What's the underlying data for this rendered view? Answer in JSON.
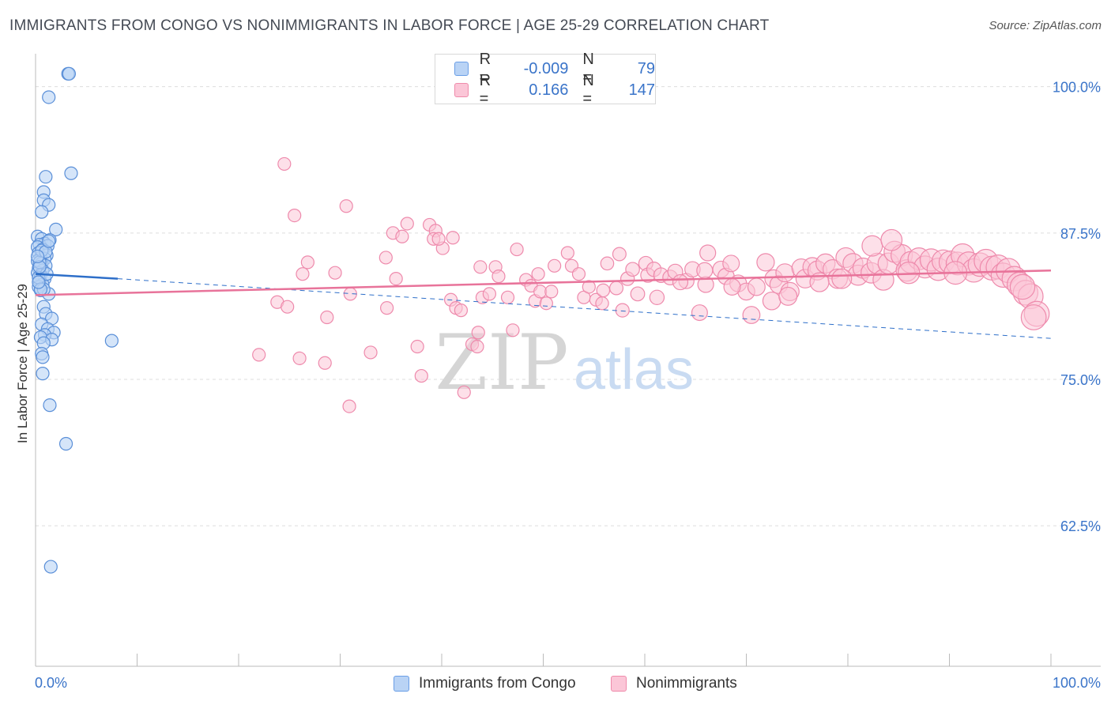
{
  "title": "IMMIGRANTS FROM CONGO VS NONIMMIGRANTS IN LABOR FORCE | AGE 25-29 CORRELATION CHART",
  "source": "Source: ZipAtlas.com",
  "watermark": {
    "zip": "ZIP",
    "atlas": "atlas"
  },
  "legend_top": {
    "r_label": "R =",
    "n_label": "N =",
    "rows": [
      {
        "r": "-0.009",
        "n": "79"
      },
      {
        "r": "0.166",
        "n": "147"
      }
    ]
  },
  "legend_bottom": [
    {
      "label": "Immigrants from Congo"
    },
    {
      "label": "Nonimmigrants"
    }
  ],
  "colors": {
    "blue_fill": "#b9d3f5",
    "blue_stroke": "#5a8fd8",
    "blue_line": "#2e6fc9",
    "pink_fill": "#fbc6d7",
    "pink_stroke": "#ee8aac",
    "pink_line": "#e8739a",
    "axis_text": "#3a74c9",
    "grid": "#dddddd"
  },
  "chart_data": {
    "type": "scatter",
    "title": "IMMIGRANTS FROM CONGO VS NONIMMIGRANTS IN LABOR FORCE | AGE 25-29 CORRELATION CHART",
    "xlabel": "",
    "ylabel": "In Labor Force | Age 25-29",
    "xlim": [
      0,
      100
    ],
    "ylim": [
      50.5,
      102
    ],
    "x_tick_labels": [
      "0.0%",
      "100.0%"
    ],
    "y_ticks": [
      62.5,
      75.0,
      87.5,
      100.0
    ],
    "y_tick_labels": [
      "62.5%",
      "75.0%",
      "87.5%",
      "100.0%"
    ],
    "grid": true,
    "series": [
      {
        "name": "Immigrants from Congo",
        "points": [
          [
            3.2,
            101.1
          ],
          [
            3.3,
            101.1
          ],
          [
            1.3,
            99.1
          ],
          [
            3.5,
            92.6
          ],
          [
            1.0,
            92.3
          ],
          [
            0.8,
            91.0
          ],
          [
            0.8,
            90.3
          ],
          [
            1.3,
            89.9
          ],
          [
            0.6,
            89.3
          ],
          [
            2.0,
            87.8
          ],
          [
            0.2,
            87.2
          ],
          [
            0.6,
            87.0
          ],
          [
            1.4,
            86.9
          ],
          [
            0.9,
            86.6
          ],
          [
            0.4,
            86.5
          ],
          [
            1.2,
            86.4
          ],
          [
            0.2,
            86.3
          ],
          [
            0.7,
            86.1
          ],
          [
            0.3,
            85.8
          ],
          [
            1.1,
            85.6
          ],
          [
            0.5,
            85.4
          ],
          [
            0.9,
            85.3
          ],
          [
            0.2,
            85.1
          ],
          [
            0.6,
            84.9
          ],
          [
            1.0,
            84.7
          ],
          [
            0.3,
            84.5
          ],
          [
            0.7,
            84.3
          ],
          [
            0.2,
            84.1
          ],
          [
            0.5,
            83.9
          ],
          [
            0.9,
            83.6
          ],
          [
            0.4,
            83.4
          ],
          [
            0.7,
            83.1
          ],
          [
            0.3,
            82.9
          ],
          [
            0.5,
            82.6
          ],
          [
            1.3,
            82.3
          ],
          [
            0.8,
            81.2
          ],
          [
            1.0,
            80.6
          ],
          [
            1.6,
            80.2
          ],
          [
            0.6,
            79.7
          ],
          [
            1.2,
            79.3
          ],
          [
            1.8,
            79.0
          ],
          [
            0.9,
            78.8
          ],
          [
            0.5,
            78.6
          ],
          [
            1.6,
            78.4
          ],
          [
            0.8,
            78.1
          ],
          [
            7.5,
            78.3
          ],
          [
            0.6,
            77.2
          ],
          [
            0.7,
            76.9
          ],
          [
            0.7,
            75.5
          ],
          [
            1.4,
            72.8
          ],
          [
            3.0,
            69.5
          ],
          [
            1.5,
            59.0
          ],
          [
            0.4,
            85.0
          ],
          [
            0.3,
            83.7
          ],
          [
            0.8,
            82.7
          ],
          [
            1.1,
            84.0
          ],
          [
            0.6,
            86.0
          ],
          [
            0.4,
            84.6
          ],
          [
            1.0,
            85.9
          ],
          [
            0.2,
            85.5
          ],
          [
            0.5,
            82.7
          ],
          [
            1.3,
            86.8
          ],
          [
            0.3,
            83.3
          ]
        ]
      },
      {
        "name": "Nonimmigrants",
        "points": [
          [
            24.5,
            93.4
          ],
          [
            25.5,
            89.0
          ],
          [
            30.6,
            89.8
          ],
          [
            23.8,
            81.6
          ],
          [
            24.8,
            81.2
          ],
          [
            26.3,
            84.0
          ],
          [
            26.8,
            85.0
          ],
          [
            29.5,
            84.1
          ],
          [
            28.7,
            80.3
          ],
          [
            22.0,
            77.1
          ],
          [
            26.0,
            76.8
          ],
          [
            28.5,
            76.4
          ],
          [
            31.0,
            82.3
          ],
          [
            30.9,
            72.7
          ],
          [
            33.0,
            77.3
          ],
          [
            34.6,
            81.1
          ],
          [
            34.5,
            85.4
          ],
          [
            35.2,
            87.5
          ],
          [
            36.1,
            87.2
          ],
          [
            36.6,
            88.3
          ],
          [
            35.5,
            83.6
          ],
          [
            37.6,
            77.8
          ],
          [
            38.0,
            75.3
          ],
          [
            38.8,
            88.2
          ],
          [
            39.4,
            87.7
          ],
          [
            39.2,
            87.0
          ],
          [
            40.1,
            86.2
          ],
          [
            39.7,
            87.0
          ],
          [
            41.1,
            87.1
          ],
          [
            40.9,
            81.8
          ],
          [
            41.4,
            81.1
          ],
          [
            41.9,
            80.9
          ],
          [
            42.2,
            73.9
          ],
          [
            43.0,
            78.0
          ],
          [
            43.5,
            77.8
          ],
          [
            43.6,
            79.0
          ],
          [
            43.8,
            84.6
          ],
          [
            44.0,
            82.0
          ],
          [
            44.7,
            82.3
          ],
          [
            45.3,
            84.6
          ],
          [
            47.4,
            86.1
          ],
          [
            48.3,
            83.5
          ],
          [
            48.8,
            83.0
          ],
          [
            49.2,
            81.7
          ],
          [
            49.7,
            82.5
          ],
          [
            50.3,
            81.5
          ],
          [
            50.8,
            82.5
          ],
          [
            51.1,
            84.7
          ],
          [
            52.4,
            85.8
          ],
          [
            52.8,
            84.7
          ],
          [
            53.5,
            84.0
          ],
          [
            54.0,
            82.0
          ],
          [
            54.5,
            82.9
          ],
          [
            55.2,
            81.8
          ],
          [
            55.9,
            82.6
          ],
          [
            56.3,
            84.9
          ],
          [
            57.2,
            82.8
          ],
          [
            57.5,
            85.7
          ],
          [
            58.3,
            83.6
          ],
          [
            58.8,
            84.4
          ],
          [
            59.3,
            82.3
          ],
          [
            60.1,
            84.9
          ],
          [
            60.3,
            83.9
          ],
          [
            60.9,
            84.4
          ],
          [
            61.6,
            83.9
          ],
          [
            62.5,
            83.7
          ],
          [
            63.0,
            84.2
          ],
          [
            64.1,
            83.4
          ],
          [
            64.7,
            84.4
          ],
          [
            65.4,
            80.7
          ],
          [
            66.2,
            85.8
          ],
          [
            66.0,
            83.1
          ],
          [
            67.5,
            84.4
          ],
          [
            68.0,
            83.8
          ],
          [
            68.5,
            84.9
          ],
          [
            69.2,
            83.2
          ],
          [
            70.0,
            82.5
          ],
          [
            70.5,
            80.5
          ],
          [
            71.0,
            82.9
          ],
          [
            71.9,
            85.0
          ],
          [
            72.7,
            83.6
          ],
          [
            73.2,
            83.1
          ],
          [
            73.8,
            84.1
          ],
          [
            74.3,
            82.5
          ],
          [
            75.4,
            84.5
          ],
          [
            75.8,
            83.6
          ],
          [
            76.5,
            84.6
          ],
          [
            77.0,
            84.3
          ],
          [
            77.8,
            84.9
          ],
          [
            78.5,
            84.4
          ],
          [
            79.0,
            83.6
          ],
          [
            79.8,
            85.4
          ],
          [
            80.5,
            84.9
          ],
          [
            81.0,
            83.9
          ],
          [
            81.5,
            84.5
          ],
          [
            82.3,
            84.1
          ],
          [
            82.9,
            84.9
          ],
          [
            83.5,
            83.5
          ],
          [
            84.0,
            84.9
          ],
          [
            84.6,
            85.9
          ],
          [
            85.3,
            85.6
          ],
          [
            85.8,
            84.3
          ],
          [
            86.2,
            85.0
          ],
          [
            87.0,
            85.3
          ],
          [
            87.6,
            84.6
          ],
          [
            88.2,
            85.2
          ],
          [
            88.9,
            84.4
          ],
          [
            89.4,
            85.1
          ],
          [
            90.1,
            85.0
          ],
          [
            90.8,
            84.9
          ],
          [
            91.3,
            85.6
          ],
          [
            91.9,
            84.9
          ],
          [
            92.4,
            84.3
          ],
          [
            93.0,
            84.8
          ],
          [
            93.6,
            85.1
          ],
          [
            94.2,
            84.5
          ],
          [
            94.8,
            84.6
          ],
          [
            95.3,
            83.9
          ],
          [
            95.8,
            84.3
          ],
          [
            96.4,
            83.6
          ],
          [
            96.9,
            83.1
          ],
          [
            97.5,
            82.4
          ],
          [
            98.0,
            82.1
          ],
          [
            98.6,
            80.6
          ],
          [
            98.3,
            80.3
          ],
          [
            97.2,
            82.9
          ],
          [
            82.4,
            86.4
          ],
          [
            84.3,
            86.9
          ],
          [
            86.0,
            84.1
          ],
          [
            68.6,
            82.9
          ],
          [
            65.9,
            84.3
          ],
          [
            63.5,
            83.3
          ],
          [
            55.8,
            81.5
          ],
          [
            57.8,
            80.9
          ],
          [
            46.5,
            82.0
          ],
          [
            47.0,
            79.2
          ],
          [
            45.6,
            83.8
          ],
          [
            49.5,
            84.0
          ],
          [
            61.2,
            82.0
          ],
          [
            72.5,
            81.7
          ],
          [
            74.1,
            82.1
          ],
          [
            77.2,
            83.3
          ],
          [
            79.4,
            83.6
          ],
          [
            90.6,
            84.1
          ]
        ]
      }
    ],
    "trend_lines": [
      {
        "series": "Immigrants from Congo",
        "solid": [
          [
            0,
            84.0
          ],
          [
            8.1,
            83.6
          ]
        ],
        "dashed": [
          [
            8.1,
            83.6
          ],
          [
            100,
            78.5
          ]
        ]
      },
      {
        "series": "Nonimmigrants",
        "solid": [
          [
            0,
            82.2
          ],
          [
            100,
            84.3
          ]
        ]
      }
    ]
  }
}
